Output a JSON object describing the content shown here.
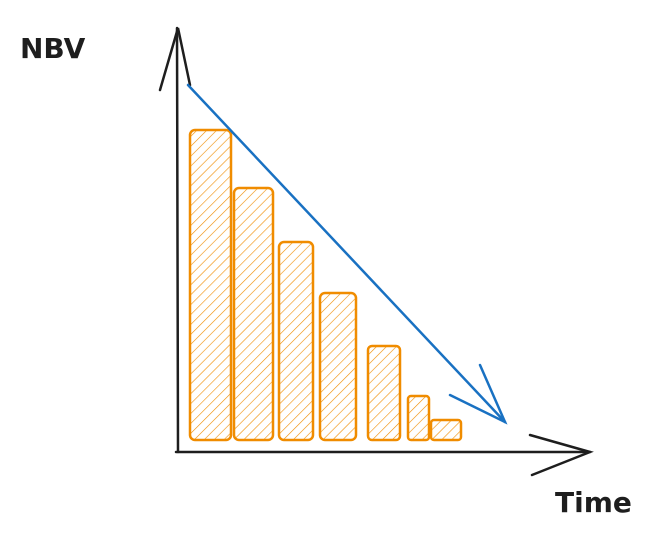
{
  "labels": {
    "y_axis": "NBV",
    "x_axis": "Time"
  }
}
